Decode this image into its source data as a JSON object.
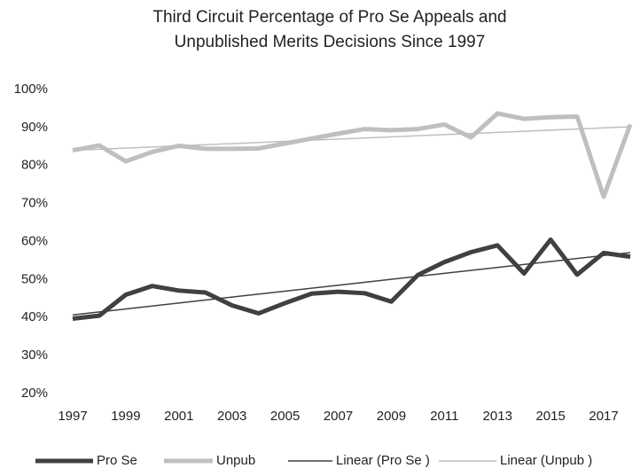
{
  "chart_data": {
    "type": "line",
    "title": [
      "Third Circuit Percentage of Pro Se Appeals and",
      "Unpublished Merits Decisions Since 1997"
    ],
    "x": [
      1997,
      1998,
      1999,
      2000,
      2001,
      2002,
      2003,
      2004,
      2005,
      2006,
      2007,
      2008,
      2009,
      2010,
      2011,
      2012,
      2013,
      2014,
      2015,
      2016,
      2017,
      2018
    ],
    "xlim": [
      1997,
      2018
    ],
    "xticks": [
      1997,
      1999,
      2001,
      2003,
      2005,
      2007,
      2009,
      2011,
      2013,
      2015,
      2017
    ],
    "ylim": [
      20,
      100
    ],
    "yticks": [
      {
        "value": 20,
        "label": "20%"
      },
      {
        "value": 30,
        "label": "30%"
      },
      {
        "value": 40,
        "label": "40%"
      },
      {
        "value": 50,
        "label": "50%"
      },
      {
        "value": 60,
        "label": "60%"
      },
      {
        "value": 70,
        "label": "70%"
      },
      {
        "value": 80,
        "label": "80%"
      },
      {
        "value": 90,
        "label": "90%"
      },
      {
        "value": 100,
        "label": "100%"
      }
    ],
    "series": [
      {
        "name": "Pro Se",
        "color": "#404040",
        "values": [
          39.7,
          40.5,
          46,
          48.3,
          47.1,
          46.6,
          43.2,
          41.1,
          43.8,
          46.3,
          46.8,
          46.4,
          44.2,
          51.2,
          54.6,
          57.2,
          59,
          51.6,
          60.5,
          51.3,
          57,
          56
        ]
      },
      {
        "name": "Unpub",
        "color": "#bfbfbf",
        "values": [
          84,
          85.3,
          81.1,
          83.6,
          85.2,
          84.4,
          84.4,
          84.5,
          85.8,
          87.1,
          88.4,
          89.6,
          89.3,
          89.6,
          90.8,
          87.4,
          93.7,
          92.3,
          92.7,
          92.9,
          71.8,
          90.8
        ]
      },
      {
        "name": "Linear (Pro Se )",
        "color": "#404040",
        "x": [
          1997,
          2018
        ],
        "values": [
          40.7,
          57.1
        ]
      },
      {
        "name": "Linear (Unpub )",
        "color": "#bfbfbf",
        "x": [
          1997,
          2018
        ],
        "values": [
          84,
          90.2
        ]
      }
    ],
    "legend": "bottom"
  }
}
